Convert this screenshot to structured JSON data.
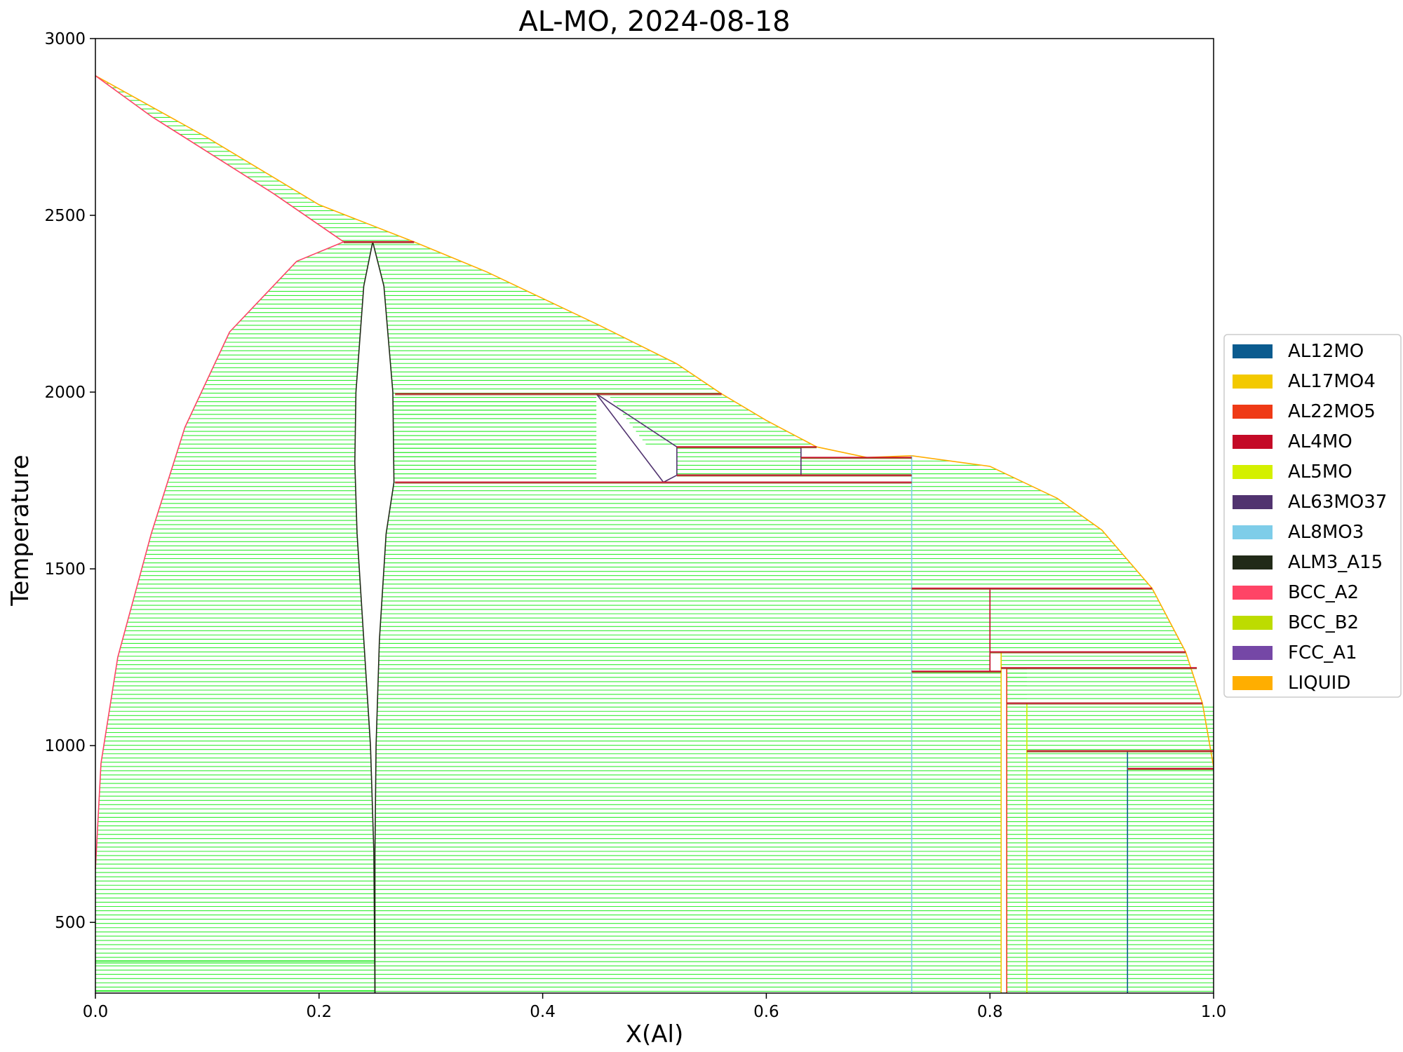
{
  "chart_data": {
    "type": "line",
    "title": "AL-MO, 2024-08-18",
    "xlabel": "X(Al)",
    "ylabel": "Temperature",
    "xlim": [
      0,
      1
    ],
    "ylim": [
      300,
      3000
    ],
    "x_ticks": [
      "0.0",
      "0.2",
      "0.4",
      "0.6",
      "0.8",
      "1.0"
    ],
    "y_ticks": [
      "500",
      "1000",
      "1500",
      "2000",
      "2500",
      "3000"
    ],
    "grid": false,
    "legend_position": "outside-right",
    "tie_line_color": "#33ee33",
    "legend": [
      {
        "name": "AL12MO",
        "color": "#0b5b8f"
      },
      {
        "name": "AL17MO4",
        "color": "#f3c900"
      },
      {
        "name": "AL22MO5",
        "color": "#ef3a16"
      },
      {
        "name": "AL4MO",
        "color": "#c40a27"
      },
      {
        "name": "AL5MO",
        "color": "#d4f000"
      },
      {
        "name": "AL63MO37",
        "color": "#51336f"
      },
      {
        "name": "AL8MO3",
        "color": "#7ecde9"
      },
      {
        "name": "ALM3_A15",
        "color": "#212a18"
      },
      {
        "name": "BCC_A2",
        "color": "#ff4466"
      },
      {
        "name": "BCC_B2",
        "color": "#bddc00"
      },
      {
        "name": "FCC_A1",
        "color": "#7547a6"
      },
      {
        "name": "LIQUID",
        "color": "#ffae00"
      }
    ],
    "boundaries": [
      {
        "phase": "LIQUID",
        "points": [
          [
            0,
            2895
          ],
          [
            0.1,
            2720
          ],
          [
            0.2,
            2530
          ],
          [
            0.285,
            2425
          ],
          [
            0.35,
            2340
          ],
          [
            0.45,
            2190
          ],
          [
            0.52,
            2080
          ],
          [
            0.56,
            1995
          ],
          [
            0.6,
            1920
          ],
          [
            0.645,
            1845
          ],
          [
            0.69,
            1815
          ],
          [
            0.73,
            1820
          ],
          [
            0.8,
            1790
          ],
          [
            0.86,
            1700
          ],
          [
            0.9,
            1610
          ],
          [
            0.945,
            1445
          ],
          [
            0.975,
            1265
          ],
          [
            0.99,
            1120
          ],
          [
            1.0,
            940
          ]
        ]
      },
      {
        "phase": "BCC_A2",
        "points": [
          [
            0,
            2895
          ],
          [
            0.05,
            2780
          ],
          [
            0.1,
            2680
          ],
          [
            0.16,
            2560
          ],
          [
            0.222,
            2425
          ]
        ]
      },
      {
        "phase": "BCC_A2",
        "points": [
          [
            0.222,
            2425
          ],
          [
            0.18,
            2370
          ],
          [
            0.12,
            2170
          ],
          [
            0.08,
            1900
          ],
          [
            0.05,
            1600
          ],
          [
            0.02,
            1250
          ],
          [
            0.005,
            950
          ],
          [
            0,
            650
          ]
        ]
      },
      {
        "phase": "ALM3_A15",
        "points": [
          [
            0.248,
            2425
          ],
          [
            0.24,
            2300
          ],
          [
            0.233,
            2000
          ],
          [
            0.232,
            1800
          ],
          [
            0.234,
            1600
          ],
          [
            0.24,
            1300
          ],
          [
            0.246,
            1000
          ],
          [
            0.249,
            700
          ],
          [
            0.25,
            300
          ]
        ]
      },
      {
        "phase": "ALM3_A15",
        "points": [
          [
            0.248,
            2425
          ],
          [
            0.258,
            2300
          ],
          [
            0.266,
            2000
          ],
          [
            0.267,
            1745
          ],
          [
            0.26,
            1600
          ],
          [
            0.254,
            1300
          ],
          [
            0.251,
            1000
          ],
          [
            0.25,
            700
          ],
          [
            0.25,
            300
          ]
        ]
      },
      {
        "phase": "AL63MO37",
        "points": [
          [
            0.448,
            1995
          ],
          [
            0.508,
            1745
          ]
        ]
      },
      {
        "phase": "AL63MO37",
        "points": [
          [
            0.448,
            1995
          ],
          [
            0.52,
            1845
          ],
          [
            0.52,
            1765
          ],
          [
            0.508,
            1745
          ]
        ]
      },
      {
        "phase": "AL63MO37",
        "points": [
          [
            0.631,
            1845
          ],
          [
            0.631,
            1765
          ]
        ]
      },
      {
        "phase": "AL8MO3",
        "points": [
          [
            0.73,
            1820
          ],
          [
            0.73,
            300
          ]
        ]
      },
      {
        "phase": "AL4MO",
        "points": [
          [
            0.8,
            1445
          ],
          [
            0.8,
            1210
          ]
        ]
      },
      {
        "phase": "AL17MO4",
        "points": [
          [
            0.81,
            1265
          ],
          [
            0.81,
            300
          ]
        ]
      },
      {
        "phase": "AL22MO5",
        "points": [
          [
            0.815,
            1220
          ],
          [
            0.815,
            300
          ]
        ]
      },
      {
        "phase": "AL5MO",
        "points": [
          [
            0.833,
            1120
          ],
          [
            0.833,
            300
          ]
        ]
      },
      {
        "phase": "AL12MO",
        "points": [
          [
            0.923,
            985
          ],
          [
            0.923,
            300
          ]
        ]
      }
    ],
    "invariant_lines": [
      {
        "x": [
          0.222,
          0.285
        ],
        "y": 2425
      },
      {
        "x": [
          0.268,
          0.56
        ],
        "y": 1995
      },
      {
        "x": [
          0.268,
          0.73
        ],
        "y": 1745
      },
      {
        "x": [
          0.52,
          0.645
        ],
        "y": 1845
      },
      {
        "x": [
          0.52,
          0.73
        ],
        "y": 1765
      },
      {
        "x": [
          0.631,
          0.73
        ],
        "y": 1815
      },
      {
        "x": [
          0.73,
          0.945
        ],
        "y": 1445
      },
      {
        "x": [
          0.8,
          0.975
        ],
        "y": 1265
      },
      {
        "x": [
          0.73,
          0.81
        ],
        "y": 1210
      },
      {
        "x": [
          0.81,
          0.985
        ],
        "y": 1220
      },
      {
        "x": [
          0.815,
          0.99
        ],
        "y": 1120
      },
      {
        "x": [
          0.833,
          1.0
        ],
        "y": 985
      },
      {
        "x": [
          0.923,
          1.0
        ],
        "y": 935
      }
    ]
  }
}
